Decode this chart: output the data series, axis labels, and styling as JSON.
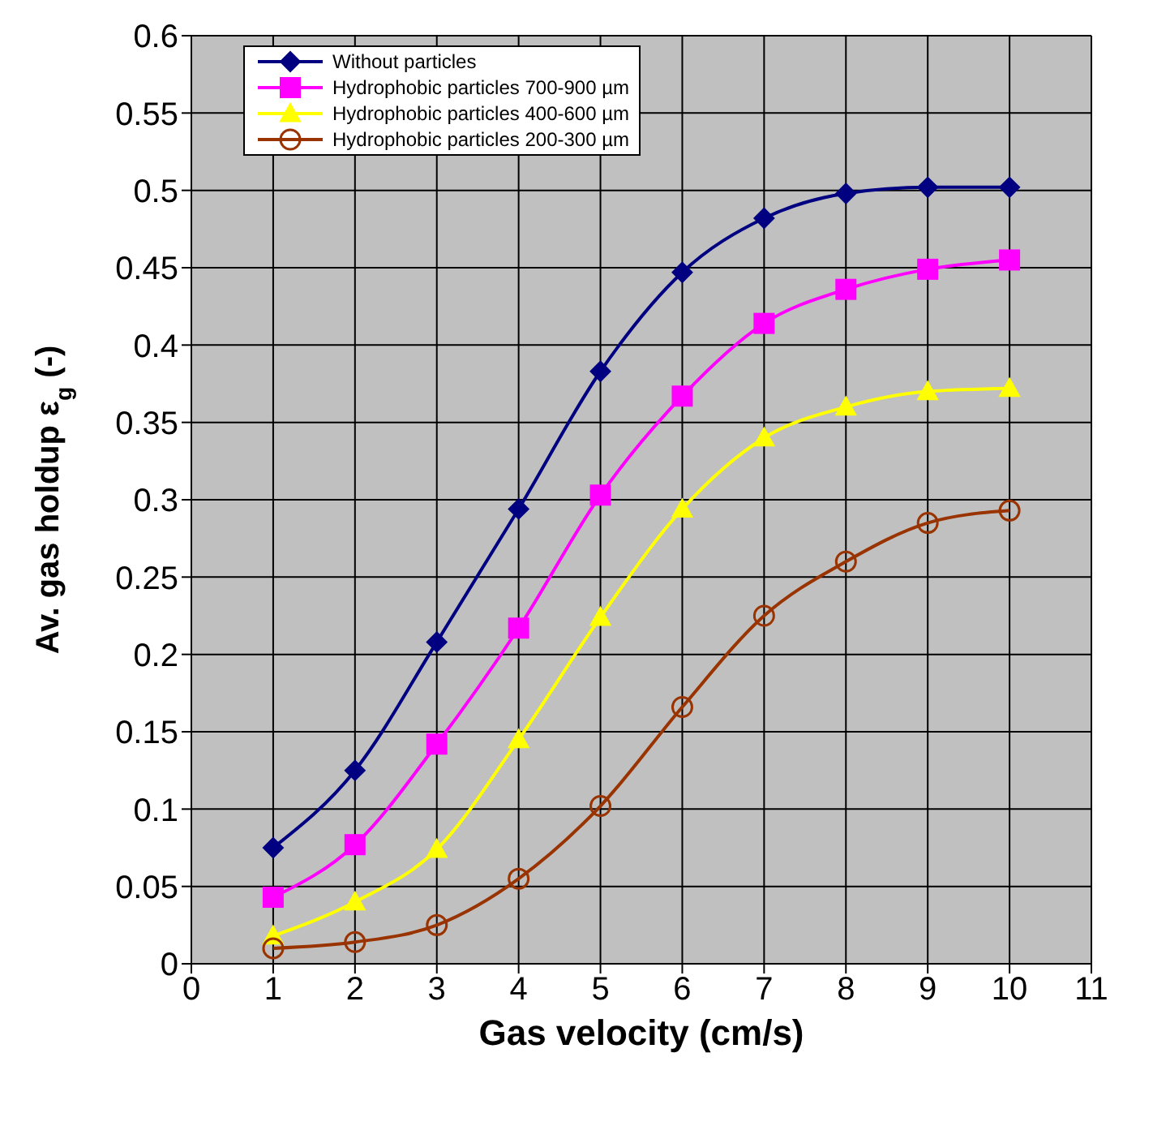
{
  "chart_data": {
    "type": "line",
    "xlabel": "Gas velocity (cm/s)",
    "ylabel": "Av. gas holdup ε$_{g}$ (-)",
    "x": [
      1,
      2,
      3,
      4,
      5,
      6,
      7,
      8,
      9,
      10
    ],
    "series": [
      {
        "name": "Without particles",
        "color": "#000080",
        "marker": "diamond",
        "values": [
          0.075,
          0.125,
          0.208,
          0.294,
          0.383,
          0.447,
          0.482,
          0.498,
          0.502,
          0.502
        ]
      },
      {
        "name": "Hydrophobic particles 700-900 µm",
        "color": "#ff00ff",
        "marker": "square",
        "values": [
          0.043,
          0.077,
          0.142,
          0.217,
          0.303,
          0.367,
          0.414,
          0.436,
          0.449,
          0.455
        ]
      },
      {
        "name": "Hydrophobic particles 400-600 µm",
        "color": "#ffff00",
        "marker": "triangle",
        "values": [
          0.018,
          0.04,
          0.074,
          0.145,
          0.224,
          0.294,
          0.34,
          0.36,
          0.37,
          0.372
        ]
      },
      {
        "name": "Hydrophobic particles 200-300 µm",
        "color": "#993300",
        "marker": "circle",
        "values": [
          0.01,
          0.014,
          0.025,
          0.055,
          0.102,
          0.166,
          0.225,
          0.26,
          0.285,
          0.293
        ]
      }
    ],
    "xlim": [
      0,
      11
    ],
    "xticks": [
      0,
      1,
      2,
      3,
      4,
      5,
      6,
      7,
      8,
      9,
      10,
      11
    ],
    "ylim": [
      0,
      0.6
    ],
    "yticks": [
      0,
      0.05,
      0.1,
      0.15,
      0.2,
      0.25,
      0.3,
      0.35,
      0.4,
      0.45,
      0.5,
      0.55,
      0.6
    ],
    "grid": true,
    "legend": "top left"
  }
}
